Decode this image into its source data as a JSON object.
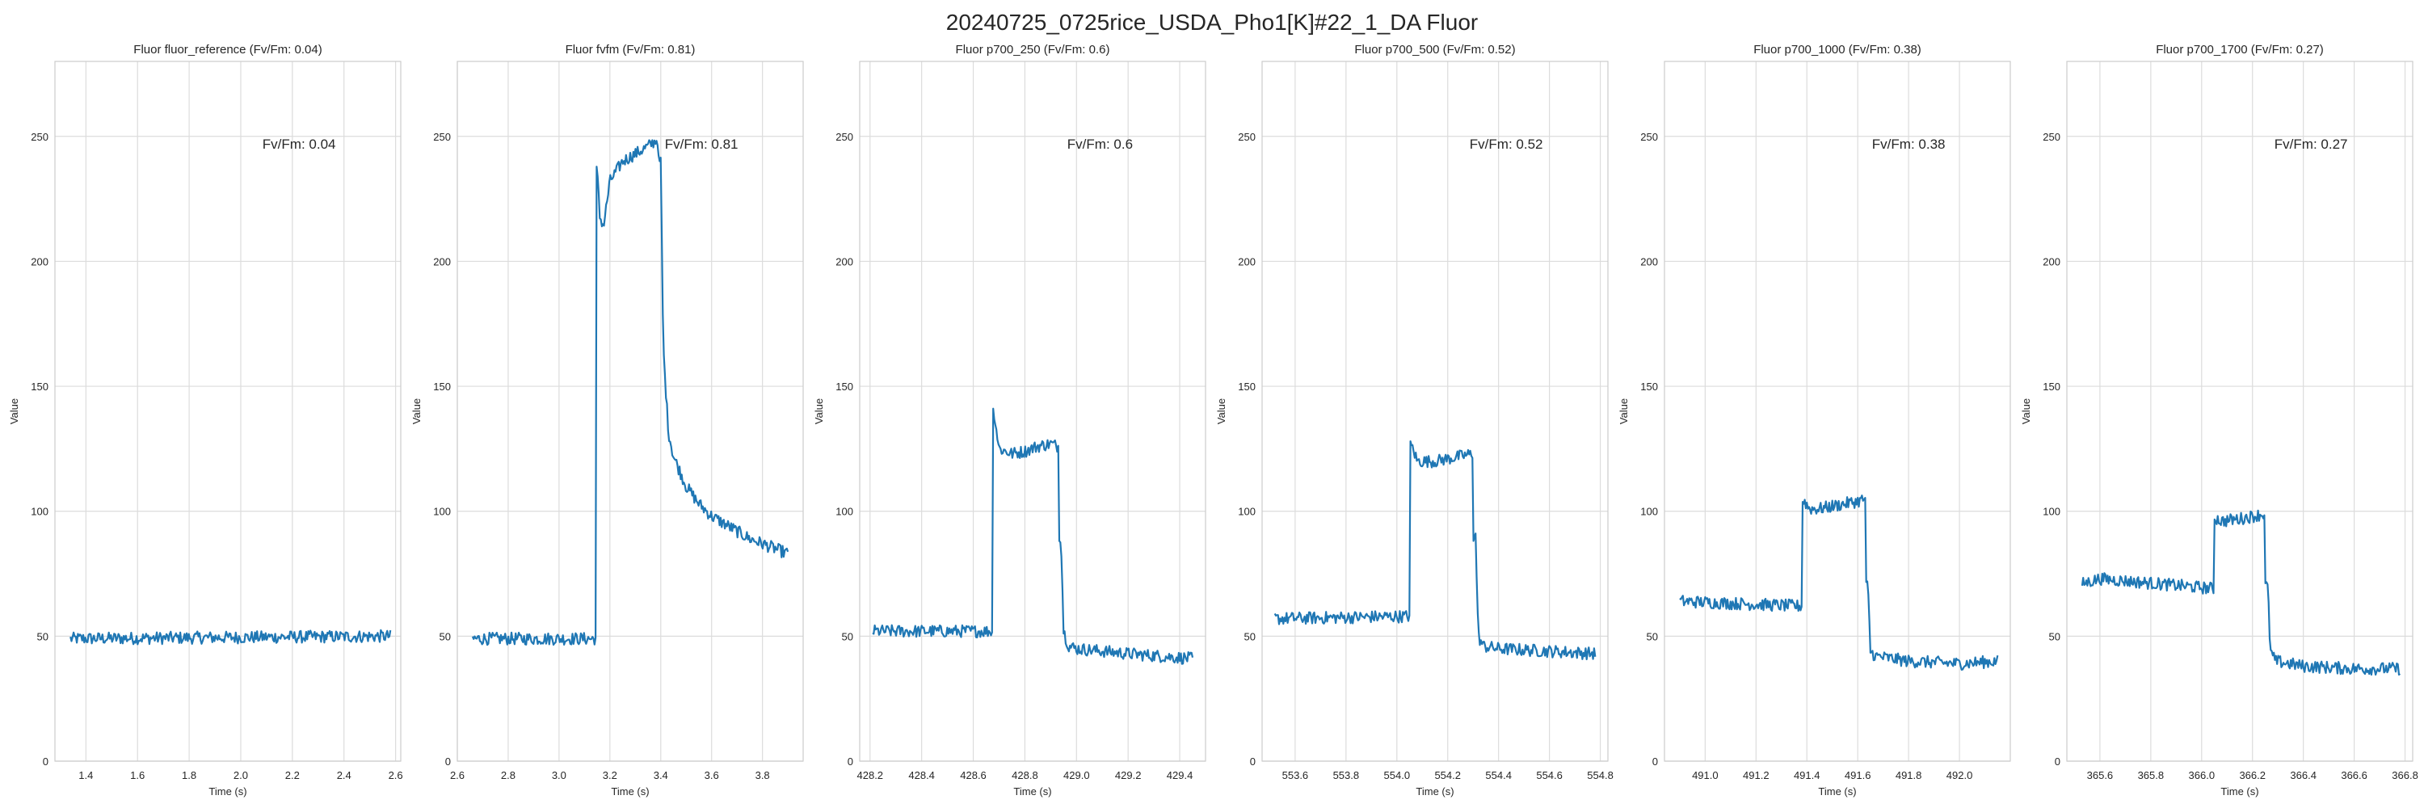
{
  "figure": {
    "suptitle": "20240725_0725rice_USDA_Pho1[K]#22_1_DA Fluor",
    "line_color": "#1f77b4",
    "grid": true,
    "style": "seaborn-whitegrid"
  },
  "chart_data": [
    {
      "type": "line",
      "title": "Fluor fluor_reference (Fv/Fm: 0.04)",
      "xlabel": "Time (s)",
      "ylabel": "Value",
      "annotation": "Fv/Fm: 0.04",
      "xlim": [
        1.28,
        2.62
      ],
      "ylim": [
        0,
        280
      ],
      "xticks": [
        "1.4",
        "1.6",
        "1.8",
        "2.0",
        "2.2",
        "2.4",
        "2.6"
      ],
      "yticks": [
        "0",
        "50",
        "100",
        "150",
        "200",
        "250"
      ],
      "series": [
        {
          "x_start": 1.34,
          "x_end": 2.58,
          "segments": [
            {
              "x": [
                1.34,
                2.58
              ],
              "y": [
                49,
                50
              ]
            }
          ],
          "noise": 2.5
        }
      ]
    },
    {
      "type": "line",
      "title": "Fluor fvfm (Fv/Fm: 0.81)",
      "xlabel": "Time (s)",
      "ylabel": "Value",
      "annotation": "Fv/Fm: 0.81",
      "xlim": [
        2.6,
        3.96
      ],
      "ylim": [
        0,
        280
      ],
      "xticks": [
        "2.6",
        "2.8",
        "3.0",
        "3.2",
        "3.4",
        "3.6",
        "3.8"
      ],
      "yticks": [
        "0",
        "50",
        "100",
        "150",
        "200",
        "250"
      ],
      "series": [
        {
          "x_start": 2.66,
          "x_end": 3.9,
          "segments": [
            {
              "x": [
                2.66,
                3.145
              ],
              "y": [
                49,
                49
              ]
            },
            {
              "x": [
                3.15,
                3.16,
                3.175,
                3.2,
                3.25,
                3.3,
                3.35,
                3.39
              ],
              "y": [
                236,
                218,
                214,
                232,
                240,
                243,
                246,
                249
              ]
            },
            {
              "x": [
                3.4,
                3.41,
                3.43,
                3.45,
                3.5,
                3.55,
                3.6,
                3.65,
                3.7,
                3.75,
                3.8,
                3.85,
                3.9
              ],
              "y": [
                240,
                165,
                132,
                122,
                110,
                103,
                98,
                95,
                92,
                89,
                87,
                85,
                83
              ]
            }
          ],
          "noise": 2.5
        }
      ]
    },
    {
      "type": "line",
      "title": "Fluor p700_250 (Fv/Fm: 0.6)",
      "xlabel": "Time (s)",
      "ylabel": "Value",
      "annotation": "Fv/Fm: 0.6",
      "xlim": [
        428.16,
        429.5
      ],
      "ylim": [
        0,
        280
      ],
      "xticks": [
        "428.2",
        "428.4",
        "428.6",
        "428.8",
        "429.0",
        "429.2",
        "429.4"
      ],
      "yticks": [
        "0",
        "50",
        "100",
        "150",
        "200",
        "250"
      ],
      "series": [
        {
          "x_start": 428.21,
          "x_end": 429.45,
          "segments": [
            {
              "x": [
                428.21,
                428.675
              ],
              "y": [
                52,
                52
              ]
            },
            {
              "x": [
                428.68,
                428.7,
                428.75,
                428.8,
                428.85,
                428.9,
                428.93
              ],
              "y": [
                140,
                125,
                123,
                124,
                126,
                127,
                126
              ]
            },
            {
              "x": [
                428.94,
                428.95,
                428.97,
                429.0,
                429.2,
                429.45
              ],
              "y": [
                90,
                52,
                46,
                45,
                43,
                41
              ]
            }
          ],
          "noise": 2.5
        }
      ]
    },
    {
      "type": "line",
      "title": "Fluor p700_500 (Fv/Fm: 0.52)",
      "xlabel": "Time (s)",
      "ylabel": "Value",
      "annotation": "Fv/Fm: 0.52",
      "xlim": [
        553.47,
        554.83
      ],
      "ylim": [
        0,
        280
      ],
      "xticks": [
        "553.6",
        "553.8",
        "554.0",
        "554.2",
        "554.4",
        "554.6",
        "554.8"
      ],
      "yticks": [
        "0",
        "50",
        "100",
        "150",
        "200",
        "250"
      ],
      "series": [
        {
          "x_start": 553.52,
          "x_end": 554.78,
          "segments": [
            {
              "x": [
                553.52,
                554.05
              ],
              "y": [
                57,
                58
              ]
            },
            {
              "x": [
                554.06,
                554.08,
                554.15,
                554.2,
                554.25,
                554.3
              ],
              "y": [
                126,
                120,
                120,
                121,
                122,
                123
              ]
            },
            {
              "x": [
                554.31,
                554.32,
                554.34,
                554.4,
                554.6,
                554.78
              ],
              "y": [
                90,
                50,
                46,
                45,
                44,
                43
              ]
            }
          ],
          "noise": 2.5
        }
      ]
    },
    {
      "type": "line",
      "title": "Fluor p700_1000 (Fv/Fm: 0.38)",
      "xlabel": "Time (s)",
      "ylabel": "Value",
      "annotation": "Fv/Fm: 0.38",
      "xlim": [
        490.84,
        492.2
      ],
      "ylim": [
        0,
        280
      ],
      "xticks": [
        "491.0",
        "491.2",
        "491.4",
        "491.6",
        "491.8",
        "492.0"
      ],
      "yticks": [
        "0",
        "50",
        "100",
        "150",
        "200",
        "250"
      ],
      "series": [
        {
          "x_start": 490.9,
          "x_end": 492.15,
          "segments": [
            {
              "x": [
                490.9,
                491.38
              ],
              "y": [
                64,
                62
              ]
            },
            {
              "x": [
                491.39,
                491.41,
                491.45,
                491.5,
                491.55,
                491.6,
                491.63
              ],
              "y": [
                104,
                101,
                101,
                102,
                103,
                104,
                105
              ]
            },
            {
              "x": [
                491.64,
                491.65,
                491.67,
                491.8,
                492.0,
                492.15
              ],
              "y": [
                70,
                44,
                42,
                40,
                39,
                40
              ]
            }
          ],
          "noise": 2.5
        }
      ]
    },
    {
      "type": "line",
      "title": "Fluor p700_1700 (Fv/Fm: 0.27)",
      "xlabel": "Time (s)",
      "ylabel": "Value",
      "annotation": "Fv/Fm: 0.27",
      "xlim": [
        365.47,
        366.83
      ],
      "ylim": [
        0,
        280
      ],
      "xticks": [
        "365.6",
        "365.8",
        "366.0",
        "366.2",
        "366.4",
        "366.6",
        "366.8"
      ],
      "yticks": [
        "0",
        "50",
        "100",
        "150",
        "200",
        "250"
      ],
      "series": [
        {
          "x_start": 365.53,
          "x_end": 366.78,
          "segments": [
            {
              "x": [
                365.53,
                365.6,
                366.05
              ],
              "y": [
                71,
                73,
                69
              ]
            },
            {
              "x": [
                366.06,
                366.08,
                366.15,
                366.2,
                366.25
              ],
              "y": [
                97,
                96,
                97,
                98,
                99
              ]
            },
            {
              "x": [
                366.26,
                366.27,
                366.29,
                366.4,
                366.6,
                366.78
              ],
              "y": [
                70,
                44,
                40,
                38,
                37,
                37
              ]
            }
          ],
          "noise": 2.5
        }
      ]
    }
  ]
}
